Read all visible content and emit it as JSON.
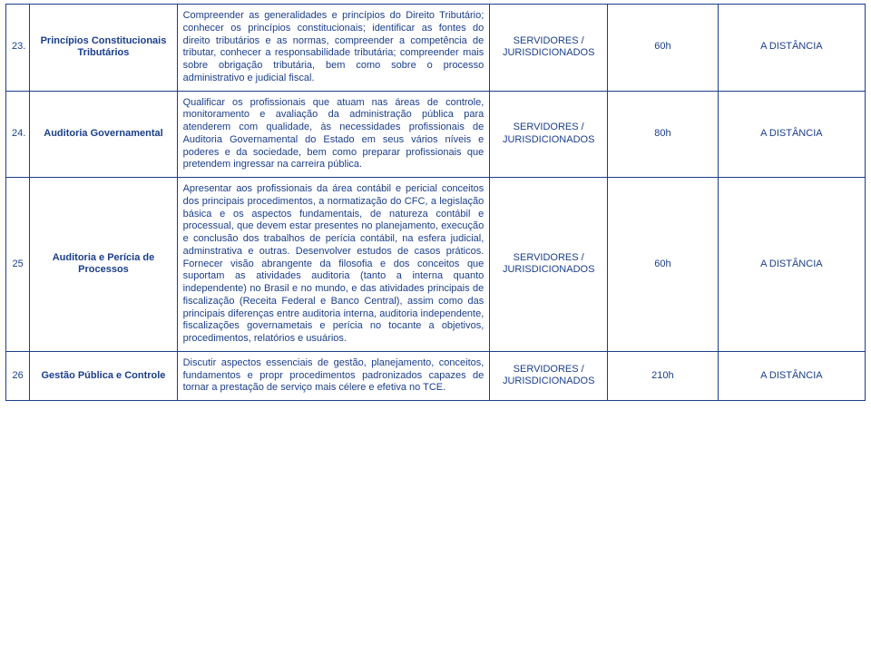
{
  "table": {
    "rows": [
      {
        "idx": "23.",
        "title": "Princípios Constitucionais Tributários",
        "desc": "Compreender as generalidades e princípios do Direito Tributário; conhecer os princípios constitucionais; identificar as fontes do direito tributários e as normas, compreender a competência de tributar, conhecer a responsabilidade tributária; compreender mais sobre obrigação tributária, bem como sobre o processo administrativo e judicial fiscal.",
        "target": "SERVIDORES / JURISDICIONADOS",
        "hours": "60h",
        "mode": "A DISTÂNCIA"
      },
      {
        "idx": "24.",
        "title": "Auditoria Governamental",
        "desc": "Qualificar os profissionais que atuam nas áreas de controle, monitoramento e avaliação da administração pública para atenderem com qualidade, às necessidades profissionais de Auditoria Governamental do Estado em seus vários níveis e poderes e da sociedade, bem como preparar profissionais que pretendem ingressar na carreira pública.",
        "target": "SERVIDORES / JURISDICIONADOS",
        "hours": "80h",
        "mode": "A DISTÂNCIA"
      },
      {
        "idx": "25",
        "title": "Auditoria e Perícia de Processos",
        "desc": "Apresentar aos profissionais da área contábil e pericial conceitos dos principais procedimentos, a normatização do CFC, a legislação básica e os aspectos fundamentais, de natureza contábil e processual, que devem estar presentes no planejamento, execução e conclusão dos trabalhos de perícia contábil, na esfera judicial, adminstrativa e outras. Desenvolver estudos de casos práticos. Fornecer visão abrangente da filosofia e dos conceitos que suportam as atividades auditoria (tanto a interna quanto independente) no Brasil e no mundo, e das atividades principais de fiscalização (Receita Federal e Banco Central), assim como das principais diferenças entre auditoria interna, auditoria independente, fiscalizações governametais e perícia no tocante a objetivos, procedimentos, relatórios e usuários.",
        "target": "SERVIDORES / JURISDICIONADOS",
        "hours": "60h",
        "mode": "A DISTÂNCIA"
      },
      {
        "idx": "26",
        "title": "Gestão Pública e Controle",
        "desc": "Discutir aspectos essenciais de gestão, planejamento, conceitos, fundamentos e propr procedimentos padronizados capazes de tornar a prestação de serviço mais célere e efetiva no TCE.",
        "target": "SERVIDORES / JURISDICIONADOS",
        "hours": "210h",
        "mode": "A DISTÂNCIA"
      }
    ]
  },
  "colors": {
    "text": "#1a3e8c",
    "border": "#1a3e8c",
    "background": "#ffffff"
  }
}
